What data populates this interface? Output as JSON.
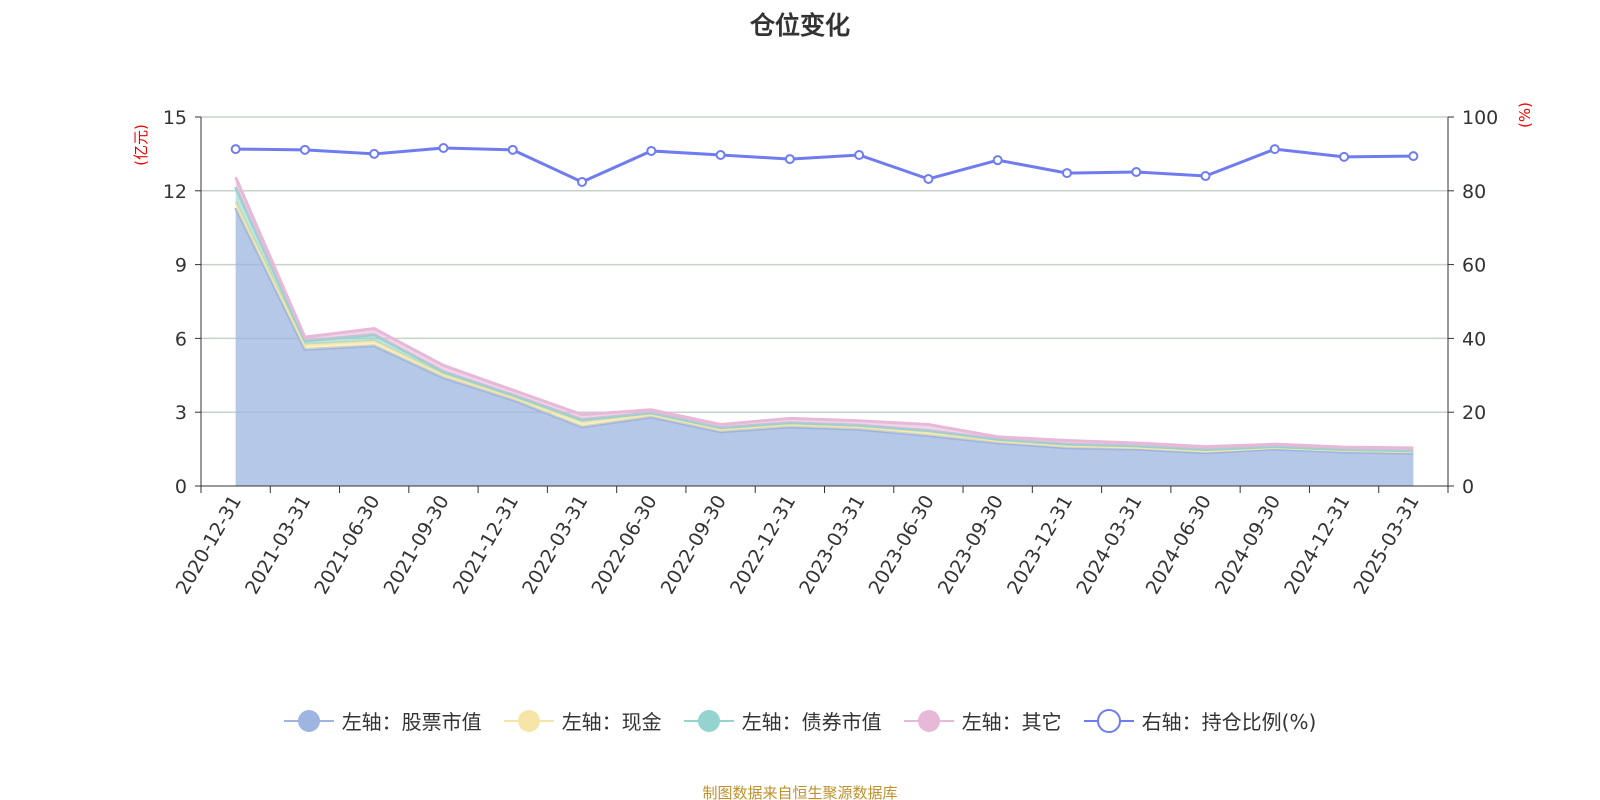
{
  "chart_data": {
    "type": "area",
    "title": "仓位变化",
    "left_axis_unit": "(亿元)",
    "right_axis_unit": "(%)",
    "categories": [
      "2020-12-31",
      "2021-03-31",
      "2021-06-30",
      "2021-09-30",
      "2021-12-31",
      "2022-03-31",
      "2022-06-30",
      "2022-09-30",
      "2022-12-31",
      "2023-03-31",
      "2023-06-30",
      "2023-09-30",
      "2023-12-31",
      "2024-03-31",
      "2024-06-30",
      "2024-09-30",
      "2024-12-31",
      "2025-03-31"
    ],
    "left_ylim": [
      0,
      15
    ],
    "left_ticks": [
      0,
      3,
      6,
      9,
      12,
      15
    ],
    "right_ylim": [
      0,
      100
    ],
    "right_ticks": [
      0,
      20,
      40,
      60,
      80,
      100
    ],
    "grid": true,
    "legend_position": "bottom",
    "series": [
      {
        "name": "左轴：股票市值",
        "axis": "left",
        "stacked": true,
        "color": "#9db5e0",
        "values": [
          11.3,
          5.55,
          5.7,
          4.4,
          3.5,
          2.4,
          2.8,
          2.2,
          2.4,
          2.3,
          2.05,
          1.75,
          1.55,
          1.5,
          1.35,
          1.5,
          1.38,
          1.33
        ]
      },
      {
        "name": "左轴：现金",
        "axis": "left",
        "stacked": true,
        "color": "#f5e6a8",
        "values": [
          0.25,
          0.2,
          0.2,
          0.15,
          0.12,
          0.2,
          0.12,
          0.12,
          0.12,
          0.12,
          0.15,
          0.1,
          0.1,
          0.08,
          0.08,
          0.07,
          0.07,
          0.07
        ]
      },
      {
        "name": "左轴：债券市值",
        "axis": "left",
        "stacked": true,
        "color": "#94d3cf",
        "values": [
          0.6,
          0.15,
          0.25,
          0.1,
          0.08,
          0.1,
          0.05,
          0.05,
          0.05,
          0.05,
          0.05,
          0.05,
          0.05,
          0.05,
          0.05,
          0.03,
          0.03,
          0.03
        ]
      },
      {
        "name": "左轴：其它",
        "axis": "left",
        "stacked": true,
        "color": "#e8b8d8",
        "values": [
          0.4,
          0.15,
          0.25,
          0.25,
          0.2,
          0.2,
          0.13,
          0.13,
          0.18,
          0.18,
          0.25,
          0.1,
          0.15,
          0.12,
          0.12,
          0.1,
          0.1,
          0.12
        ]
      },
      {
        "name": "右轴：持仓比例(%)",
        "axis": "right",
        "type": "line",
        "color": "#6f7cf0",
        "values": [
          91.3,
          91.1,
          90.0,
          91.6,
          91.1,
          82.4,
          90.8,
          89.7,
          88.6,
          89.7,
          83.2,
          88.3,
          84.8,
          85.1,
          84.0,
          91.3,
          89.2,
          89.4
        ]
      }
    ]
  },
  "footer": "制图数据来自恒生聚源数据库"
}
